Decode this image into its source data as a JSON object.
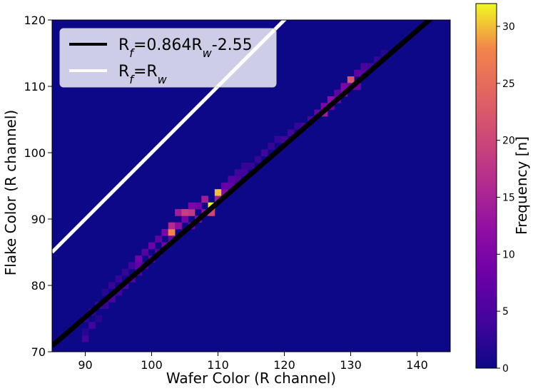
{
  "chart_data": {
    "type": "heatmap",
    "title": "",
    "xlabel": "Wafer Color (R channel)",
    "ylabel": "Flake Color (R channel)",
    "xlim": [
      85,
      145
    ],
    "ylim": [
      70,
      120
    ],
    "xticks": [
      90,
      100,
      110,
      120,
      130,
      140
    ],
    "yticks": [
      70,
      80,
      90,
      100,
      110,
      120
    ],
    "colorbar": {
      "label": "Frequency [n]",
      "range": [
        0,
        32
      ],
      "ticks": [
        0,
        5,
        10,
        15,
        20,
        25,
        30
      ],
      "colormap": "plasma"
    },
    "background_color": "#0d0887",
    "bin_width": 1,
    "lines": [
      {
        "name": "Rf=0.864Rw-2.55",
        "slope": 0.864,
        "intercept": -2.55,
        "color": "#000000"
      },
      {
        "name": "Rf=Rw",
        "slope": 1.0,
        "intercept": 0.0,
        "color": "#ffffff"
      }
    ],
    "legend": {
      "placement": "top-left",
      "entries": [
        {
          "label": "Rf=0.864Rw-2.55",
          "color": "#000000"
        },
        {
          "label": "Rf=Rw",
          "color": "#ffffff"
        }
      ]
    },
    "bins": [
      [
        90,
        72,
        4
      ],
      [
        90,
        73,
        2
      ],
      [
        90,
        75,
        3
      ],
      [
        91,
        74,
        4
      ],
      [
        91,
        76,
        3
      ],
      [
        92,
        75,
        2
      ],
      [
        92,
        77,
        4
      ],
      [
        93,
        77,
        3
      ],
      [
        93,
        79,
        2
      ],
      [
        94,
        78,
        5
      ],
      [
        94,
        80,
        3
      ],
      [
        95,
        79,
        4
      ],
      [
        95,
        81,
        3
      ],
      [
        96,
        80,
        5
      ],
      [
        96,
        82,
        3
      ],
      [
        97,
        81,
        6
      ],
      [
        97,
        83,
        4
      ],
      [
        98,
        82,
        5
      ],
      [
        98,
        84,
        9
      ],
      [
        98,
        83,
        7
      ],
      [
        99,
        83,
        5
      ],
      [
        99,
        85,
        6
      ],
      [
        100,
        84,
        7
      ],
      [
        100,
        86,
        8
      ],
      [
        101,
        85,
        6
      ],
      [
        101,
        87,
        7
      ],
      [
        102,
        86,
        9
      ],
      [
        102,
        88,
        10
      ],
      [
        103,
        88,
        28
      ],
      [
        103,
        89,
        16
      ],
      [
        103,
        87,
        8
      ],
      [
        104,
        89,
        12
      ],
      [
        104,
        91,
        14
      ],
      [
        105,
        90,
        9
      ],
      [
        105,
        91,
        19
      ],
      [
        106,
        91,
        18
      ],
      [
        106,
        89,
        8
      ],
      [
        106,
        92,
        10
      ],
      [
        107,
        90,
        11
      ],
      [
        107,
        92,
        9
      ],
      [
        108,
        91,
        12
      ],
      [
        108,
        93,
        14
      ],
      [
        109,
        92,
        32
      ],
      [
        109,
        91,
        20
      ],
      [
        110,
        94,
        30
      ],
      [
        110,
        93,
        14
      ],
      [
        111,
        94,
        11
      ],
      [
        111,
        95,
        8
      ],
      [
        112,
        95,
        7
      ],
      [
        112,
        96,
        6
      ],
      [
        113,
        96,
        5
      ],
      [
        113,
        97,
        4
      ],
      [
        114,
        97,
        4
      ],
      [
        114,
        98,
        3
      ],
      [
        115,
        98,
        3
      ],
      [
        116,
        99,
        3
      ],
      [
        117,
        100,
        4
      ],
      [
        118,
        101,
        3
      ],
      [
        119,
        102,
        3
      ],
      [
        120,
        102,
        4
      ],
      [
        121,
        103,
        4
      ],
      [
        122,
        104,
        3
      ],
      [
        123,
        104,
        5
      ],
      [
        124,
        105,
        5
      ],
      [
        125,
        106,
        8
      ],
      [
        126,
        106,
        14
      ],
      [
        126,
        107,
        10
      ],
      [
        127,
        107,
        9
      ],
      [
        127,
        108,
        12
      ],
      [
        128,
        108,
        9
      ],
      [
        128,
        109,
        7
      ],
      [
        129,
        109,
        11
      ],
      [
        129,
        110,
        10
      ],
      [
        130,
        111,
        22
      ],
      [
        130,
        110,
        9
      ],
      [
        131,
        110,
        8
      ],
      [
        131,
        112,
        7
      ],
      [
        132,
        112,
        6
      ],
      [
        132,
        113,
        5
      ],
      [
        133,
        113,
        4
      ],
      [
        134,
        114,
        3
      ],
      [
        135,
        115,
        2
      ]
    ]
  }
}
